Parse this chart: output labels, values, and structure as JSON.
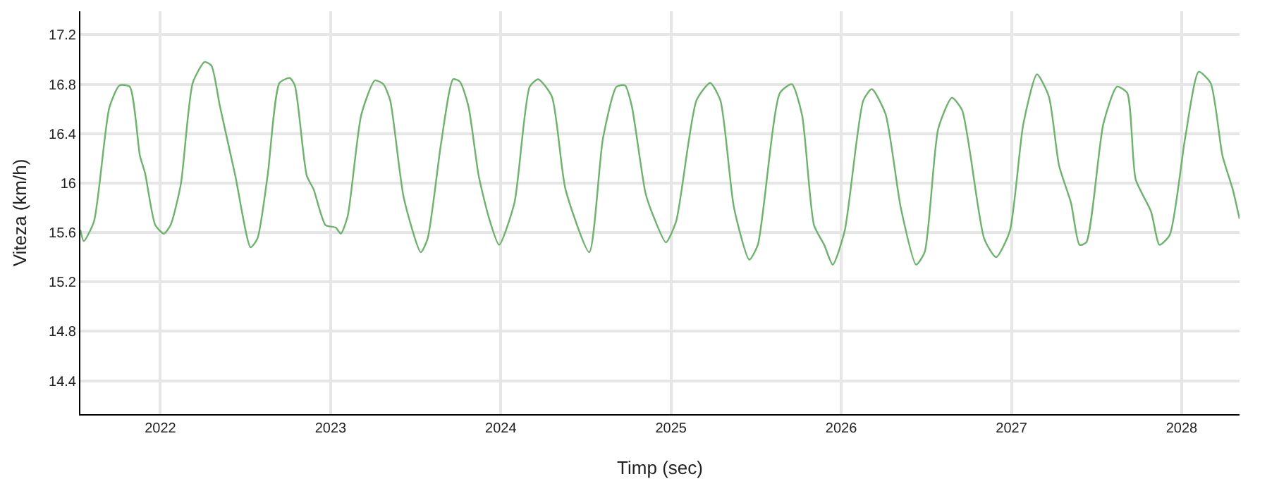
{
  "chart_data": {
    "type": "line",
    "xlabel": "Timp (sec)",
    "ylabel": "Viteza (km/h)",
    "xlim": [
      2021.53,
      2028.34
    ],
    "xticks": [
      2022,
      2023,
      2024,
      2025,
      2026,
      2027,
      2028
    ],
    "ylim": [
      14.13,
      17.39
    ],
    "yticks": [
      14.4,
      14.8,
      15.2,
      15.6,
      16,
      16.4,
      16.8,
      17.2
    ],
    "grid": true,
    "marker": "none",
    "line_style": "solid",
    "x": [
      2021.53,
      2021.55,
      2021.61,
      2021.7,
      2021.76,
      2021.82,
      2021.88,
      2021.91,
      2021.97,
      2022.02,
      2022.06,
      2022.12,
      2022.19,
      2022.26,
      2022.3,
      2022.35,
      2022.44,
      2022.53,
      2022.57,
      2022.63,
      2022.7,
      2022.76,
      2022.79,
      2022.86,
      2022.9,
      2022.97,
      2023.03,
      2023.06,
      2023.1,
      2023.18,
      2023.26,
      2023.31,
      2023.35,
      2023.43,
      2023.53,
      2023.57,
      2023.65,
      2023.72,
      2023.76,
      2023.81,
      2023.87,
      2023.93,
      2023.99,
      2024.08,
      2024.17,
      2024.22,
      2024.3,
      2024.38,
      2024.52,
      2024.6,
      2024.68,
      2024.73,
      2024.77,
      2024.85,
      2024.9,
      2024.97,
      2025.03,
      2025.15,
      2025.23,
      2025.29,
      2025.37,
      2025.46,
      2025.51,
      2025.64,
      2025.71,
      2025.77,
      2025.84,
      2025.9,
      2025.95,
      2026.02,
      2026.13,
      2026.18,
      2026.26,
      2026.35,
      2026.44,
      2026.49,
      2026.57,
      2026.65,
      2026.71,
      2026.84,
      2026.91,
      2026.99,
      2027.07,
      2027.15,
      2027.22,
      2027.28,
      2027.35,
      2027.4,
      2027.44,
      2027.54,
      2027.62,
      2027.68,
      2027.73,
      2027.82,
      2027.87,
      2027.93,
      2028.02,
      2028.1,
      2028.17,
      2028.24,
      2028.3,
      2028.34
    ],
    "series": [
      {
        "color": "#6ab56a",
        "values": [
          15.62,
          15.53,
          15.69,
          16.61,
          16.79,
          16.78,
          16.22,
          16.08,
          15.66,
          15.59,
          15.66,
          15.99,
          16.81,
          16.98,
          16.95,
          16.62,
          16.06,
          15.48,
          15.55,
          16.06,
          16.81,
          16.85,
          16.79,
          16.06,
          15.95,
          15.66,
          15.64,
          15.59,
          15.73,
          16.55,
          16.83,
          16.8,
          16.67,
          15.88,
          15.44,
          15.55,
          16.33,
          16.84,
          16.82,
          16.62,
          16.06,
          15.72,
          15.5,
          15.84,
          16.78,
          16.84,
          16.7,
          15.95,
          15.44,
          16.36,
          16.78,
          16.79,
          16.62,
          15.92,
          15.72,
          15.52,
          15.69,
          16.67,
          16.81,
          16.67,
          15.8,
          15.38,
          15.5,
          16.73,
          16.8,
          16.55,
          15.66,
          15.5,
          15.34,
          15.61,
          16.67,
          16.76,
          16.56,
          15.8,
          15.34,
          15.44,
          16.44,
          16.69,
          16.59,
          15.55,
          15.4,
          15.61,
          16.48,
          16.88,
          16.7,
          16.14,
          15.84,
          15.5,
          15.52,
          16.48,
          16.78,
          16.73,
          16.03,
          15.77,
          15.5,
          15.58,
          16.36,
          16.9,
          16.81,
          16.22,
          15.95,
          15.71
        ]
      }
    ]
  }
}
